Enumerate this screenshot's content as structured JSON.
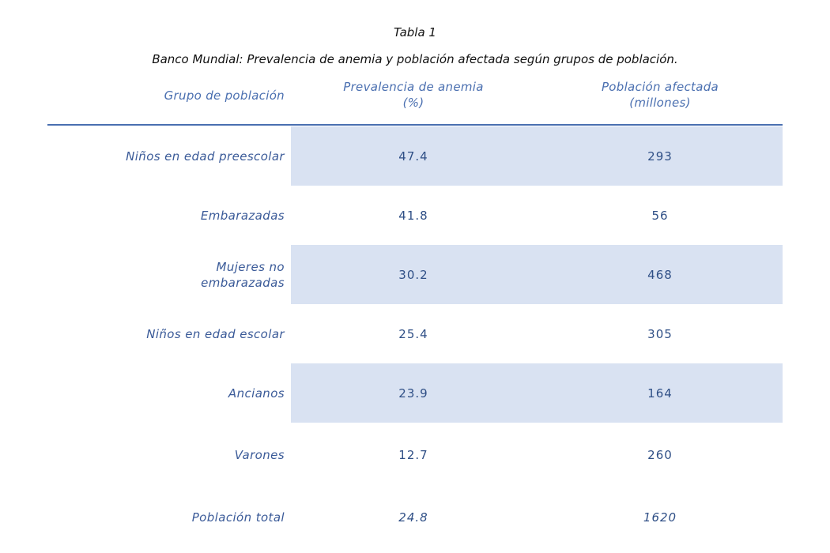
{
  "table_number": "Tabla 1",
  "caption": "Banco Mundial: Prevalencia de anemia y población afectada según grupos de población.",
  "headers": {
    "group": "Grupo de población",
    "prevalence_line1": "Prevalencia de anemia",
    "prevalence_line2": "(%)",
    "affected_line1": "Población afectada",
    "affected_line2": "(millones)"
  },
  "rows": [
    {
      "group_line1": "Niños en edad preescolar",
      "group_line2": "",
      "prevalence": "47.4",
      "affected": "293"
    },
    {
      "group_line1": "Embarazadas",
      "group_line2": "",
      "prevalence": "41.8",
      "affected": "56"
    },
    {
      "group_line1": "Mujeres no",
      "group_line2": "embarazadas",
      "prevalence": "30.2",
      "affected": "468"
    },
    {
      "group_line1": "Niños en edad escolar",
      "group_line2": "",
      "prevalence": "25.4",
      "affected": "305"
    },
    {
      "group_line1": "Ancianos",
      "group_line2": "",
      "prevalence": "23.9",
      "affected": "164"
    },
    {
      "group_line1": "Varones",
      "group_line2": "",
      "prevalence": "12.7",
      "affected": "260"
    },
    {
      "group_line1": "Población total",
      "group_line2": "",
      "prevalence": "24.8",
      "affected": "1620"
    }
  ],
  "colors": {
    "header_text": "#4a6fb0",
    "body_text": "#2f4f86",
    "band_fill": "#d9e2f2",
    "rule": "#4a6fb0"
  }
}
